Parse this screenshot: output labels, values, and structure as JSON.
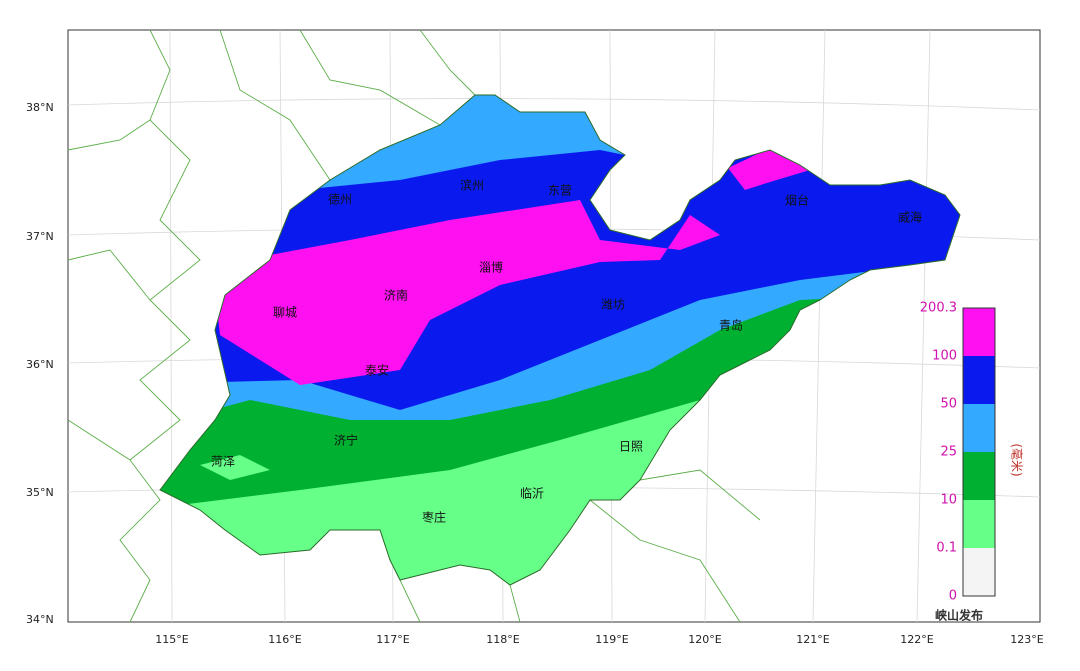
{
  "map": {
    "lat_labels": [
      "38°N",
      "37°N",
      "36°N",
      "35°N",
      "34°N"
    ],
    "lon_labels": [
      "115°E",
      "116°E",
      "117°E",
      "118°E",
      "119°E",
      "120°E",
      "121°E",
      "122°E",
      "123°E"
    ],
    "cities": [
      "德州",
      "滨州",
      "东营",
      "烟台",
      "威海",
      "淄博",
      "济南",
      "聊城",
      "潍坊",
      "青岛",
      "泰安",
      "济宁",
      "菏泽",
      "日照",
      "临沂",
      "枣庄"
    ]
  },
  "legend": {
    "ticks": [
      "200.3",
      "100",
      "50",
      "25",
      "10",
      "0.1",
      "0"
    ],
    "colors": [
      "#ff10f0",
      "#0a1aee",
      "#33aaff",
      "#00b030",
      "#66ff88",
      "#f4f4f4"
    ],
    "unit": "(毫米)"
  },
  "watermark": "峡山发布"
}
